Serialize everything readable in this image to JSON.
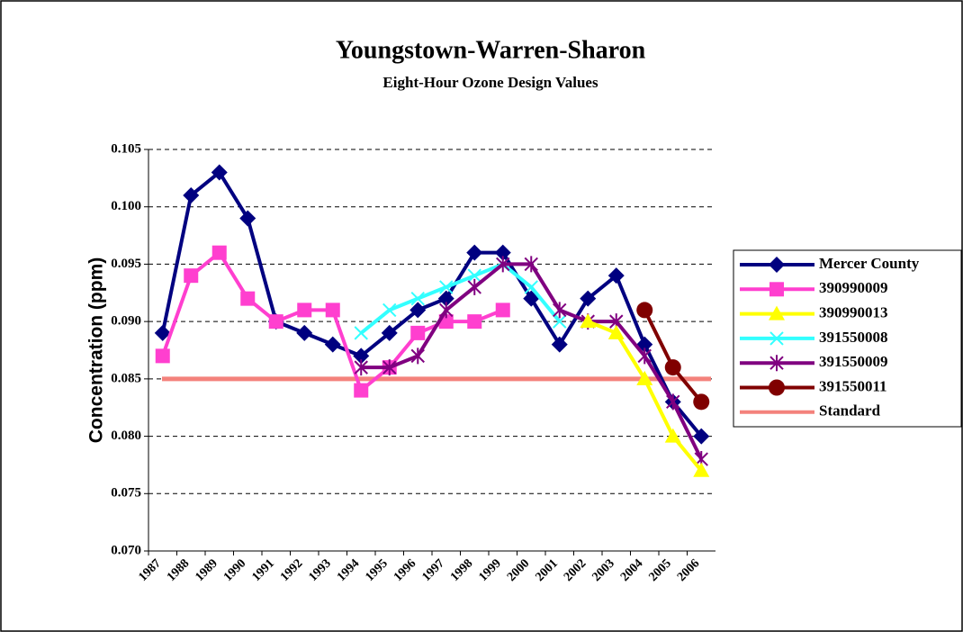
{
  "chart_data": {
    "type": "line",
    "title": "Youngstown-Warren-Sharon",
    "subtitle": "Eight-Hour Ozone Design Values",
    "y_label": "Concentration (ppm)",
    "categories": [
      "1987",
      "1988",
      "1989",
      "1990",
      "1991",
      "1992",
      "1993",
      "1994",
      "1995",
      "1996",
      "1997",
      "1998",
      "1999",
      "2000",
      "2001",
      "2002",
      "2003",
      "2004",
      "2005",
      "2006"
    ],
    "ylim": [
      0.07,
      0.105
    ],
    "yticks": [
      {
        "value": 0.07,
        "label": "0.070"
      },
      0.075,
      {
        "value": 0.08,
        "label": "0.080"
      },
      0.085,
      {
        "value": 0.09,
        "label": "0.090"
      },
      0.095,
      {
        "value": 0.1,
        "label": "0.100"
      },
      0.105
    ],
    "grid": true,
    "legend": "right",
    "series": [
      {
        "name": "Mercer County",
        "color": "#000080",
        "marker": "diamond",
        "values": [
          0.089,
          0.101,
          0.103,
          0.099,
          0.09,
          0.089,
          0.088,
          0.087,
          0.089,
          0.091,
          0.092,
          0.096,
          0.096,
          0.092,
          0.088,
          0.092,
          0.094,
          0.088,
          0.083,
          0.08
        ]
      },
      {
        "name": "390990009",
        "color": "#ff3fcf",
        "marker": "square",
        "values": [
          0.087,
          0.094,
          0.096,
          0.092,
          0.09,
          0.091,
          0.091,
          0.084,
          0.086,
          0.089,
          0.09,
          0.09,
          0.091,
          null,
          null,
          null,
          null,
          null,
          null,
          null
        ]
      },
      {
        "name": "390990013",
        "color": "#ffff00",
        "marker": "triangle",
        "values": [
          null,
          null,
          null,
          null,
          null,
          null,
          null,
          null,
          null,
          null,
          null,
          null,
          null,
          null,
          null,
          0.09,
          0.089,
          0.085,
          0.08,
          0.077
        ]
      },
      {
        "name": "391550008",
        "color": "#33ffff",
        "marker": "x",
        "values": [
          null,
          null,
          null,
          null,
          null,
          null,
          null,
          0.089,
          0.091,
          0.092,
          0.093,
          0.094,
          0.095,
          0.093,
          0.09,
          null,
          null,
          null,
          null,
          null
        ]
      },
      {
        "name": "391550009",
        "color": "#800080",
        "marker": "star",
        "values": [
          null,
          null,
          null,
          null,
          null,
          null,
          null,
          0.086,
          0.086,
          0.087,
          0.091,
          0.093,
          0.095,
          0.095,
          0.091,
          0.09,
          0.09,
          0.087,
          0.083,
          0.078
        ]
      },
      {
        "name": "391550011",
        "color": "#800000",
        "marker": "circle",
        "values": [
          null,
          null,
          null,
          null,
          null,
          null,
          null,
          null,
          null,
          null,
          null,
          null,
          null,
          null,
          null,
          null,
          null,
          0.091,
          0.086,
          0.083
        ]
      },
      {
        "name": "Standard",
        "color": "#f4827c",
        "marker": "none",
        "values": [
          0.085,
          0.085,
          0.085,
          0.085,
          0.085,
          0.085,
          0.085,
          0.085,
          0.085,
          0.085,
          0.085,
          0.085,
          0.085,
          0.085,
          0.085,
          0.085,
          0.085,
          0.085,
          0.085,
          0.085
        ]
      }
    ]
  }
}
